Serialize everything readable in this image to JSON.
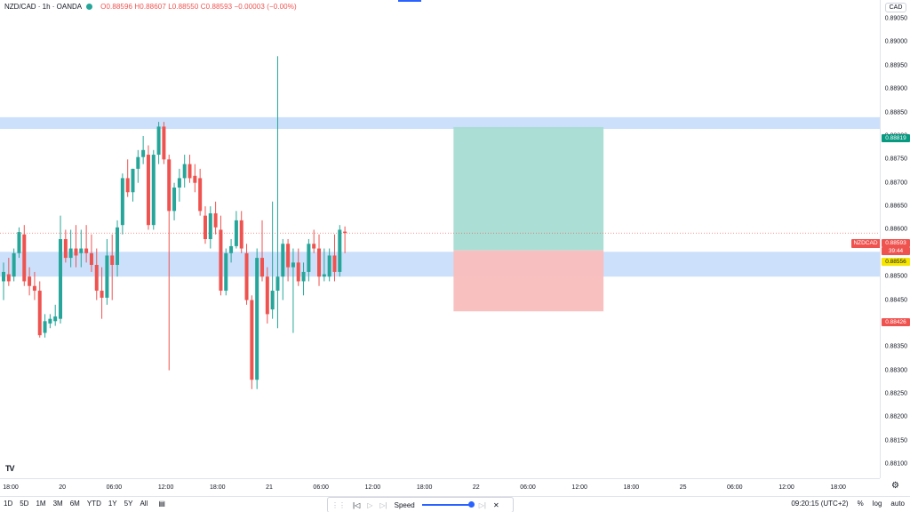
{
  "legend": {
    "symbol": "NZD/CAD · 1h · OANDA",
    "ohlc": "O0.88596 H0.88607 L0.88550 C0.88593 −0.00003 (−0.00%)"
  },
  "currency_button": "CAD",
  "colors": {
    "up": "#26a69a",
    "down": "#ef5350",
    "zone": "#bbd6fb",
    "profit": "#a6dcd2",
    "loss": "#f9bdbd",
    "accent": "#2962ff"
  },
  "chart_data": {
    "type": "candlestick",
    "symbol": "NZD/CAD",
    "interval": "1h",
    "ylim": [
      0.8807,
      0.8909
    ],
    "y_ticks": [
      "0.89050",
      "0.89000",
      "0.88950",
      "0.88900",
      "0.88850",
      "0.88800",
      "0.88750",
      "0.88700",
      "0.88650",
      "0.88600",
      "0.88550",
      "0.88500",
      "0.88450",
      "0.88400",
      "0.88350",
      "0.88300",
      "0.88250",
      "0.88200",
      "0.88150",
      "0.88100"
    ],
    "x_ticks": [
      {
        "label": "18:00",
        "x": 0
      },
      {
        "label": "20",
        "x": 10
      },
      {
        "label": "06:00",
        "x": 20
      },
      {
        "label": "12:00",
        "x": 30
      },
      {
        "label": "18:00",
        "x": 40
      },
      {
        "label": "21",
        "x": 50
      },
      {
        "label": "06:00",
        "x": 60
      },
      {
        "label": "12:00",
        "x": 70
      },
      {
        "label": "18:00",
        "x": 80
      },
      {
        "label": "22",
        "x": 90
      },
      {
        "label": "06:00",
        "x": 100
      },
      {
        "label": "12:00",
        "x": 110
      },
      {
        "label": "18:00",
        "x": 120
      },
      {
        "label": "25",
        "x": 130
      },
      {
        "label": "06:00",
        "x": 140
      },
      {
        "label": "12:00",
        "x": 150
      },
      {
        "label": "18:00",
        "x": 160
      }
    ],
    "candles": [
      {
        "o": 0.8849,
        "h": 0.8853,
        "l": 0.8845,
        "c": 0.8851
      },
      {
        "o": 0.88505,
        "h": 0.8854,
        "l": 0.8848,
        "c": 0.8849
      },
      {
        "o": 0.885,
        "h": 0.8856,
        "l": 0.8849,
        "c": 0.8855
      },
      {
        "o": 0.8855,
        "h": 0.88605,
        "l": 0.8854,
        "c": 0.88595
      },
      {
        "o": 0.8859,
        "h": 0.8861,
        "l": 0.8848,
        "c": 0.8849
      },
      {
        "o": 0.885,
        "h": 0.8852,
        "l": 0.8846,
        "c": 0.8848
      },
      {
        "o": 0.8848,
        "h": 0.8851,
        "l": 0.8845,
        "c": 0.8847
      },
      {
        "o": 0.8847,
        "h": 0.8849,
        "l": 0.8837,
        "c": 0.88375
      },
      {
        "o": 0.8838,
        "h": 0.8842,
        "l": 0.8837,
        "c": 0.88405
      },
      {
        "o": 0.884,
        "h": 0.8842,
        "l": 0.8839,
        "c": 0.8841
      },
      {
        "o": 0.88405,
        "h": 0.8844,
        "l": 0.88395,
        "c": 0.88415
      },
      {
        "o": 0.8841,
        "h": 0.8863,
        "l": 0.884,
        "c": 0.8858
      },
      {
        "o": 0.8858,
        "h": 0.886,
        "l": 0.8853,
        "c": 0.8854
      },
      {
        "o": 0.8854,
        "h": 0.886,
        "l": 0.8852,
        "c": 0.8856
      },
      {
        "o": 0.8856,
        "h": 0.8861,
        "l": 0.8852,
        "c": 0.88545
      },
      {
        "o": 0.8855,
        "h": 0.886,
        "l": 0.8852,
        "c": 0.8856
      },
      {
        "o": 0.8856,
        "h": 0.8861,
        "l": 0.8853,
        "c": 0.8855
      },
      {
        "o": 0.8855,
        "h": 0.8859,
        "l": 0.8851,
        "c": 0.88525
      },
      {
        "o": 0.88525,
        "h": 0.8856,
        "l": 0.8845,
        "c": 0.8847
      },
      {
        "o": 0.8847,
        "h": 0.8852,
        "l": 0.8841,
        "c": 0.88455
      },
      {
        "o": 0.88455,
        "h": 0.8858,
        "l": 0.8844,
        "c": 0.88545
      },
      {
        "o": 0.88545,
        "h": 0.8859,
        "l": 0.8845,
        "c": 0.88525
      },
      {
        "o": 0.88525,
        "h": 0.8862,
        "l": 0.885,
        "c": 0.88605
      },
      {
        "o": 0.8861,
        "h": 0.8872,
        "l": 0.8859,
        "c": 0.8871
      },
      {
        "o": 0.8871,
        "h": 0.8875,
        "l": 0.8867,
        "c": 0.8868
      },
      {
        "o": 0.8868,
        "h": 0.8873,
        "l": 0.8866,
        "c": 0.8873
      },
      {
        "o": 0.8873,
        "h": 0.8877,
        "l": 0.887,
        "c": 0.88755
      },
      {
        "o": 0.88755,
        "h": 0.888,
        "l": 0.8874,
        "c": 0.8877
      },
      {
        "o": 0.8876,
        "h": 0.8878,
        "l": 0.886,
        "c": 0.8861
      },
      {
        "o": 0.8861,
        "h": 0.8877,
        "l": 0.886,
        "c": 0.8876
      },
      {
        "o": 0.8876,
        "h": 0.8883,
        "l": 0.8874,
        "c": 0.8882
      },
      {
        "o": 0.8882,
        "h": 0.8883,
        "l": 0.8874,
        "c": 0.8875
      },
      {
        "o": 0.8875,
        "h": 0.8876,
        "l": 0.883,
        "c": 0.8864
      },
      {
        "o": 0.8864,
        "h": 0.887,
        "l": 0.8862,
        "c": 0.8869
      },
      {
        "o": 0.8869,
        "h": 0.8873,
        "l": 0.8866,
        "c": 0.8871
      },
      {
        "o": 0.8871,
        "h": 0.8876,
        "l": 0.8869,
        "c": 0.8874
      },
      {
        "o": 0.8874,
        "h": 0.8876,
        "l": 0.887,
        "c": 0.8871
      },
      {
        "o": 0.88715,
        "h": 0.8874,
        "l": 0.8868,
        "c": 0.887
      },
      {
        "o": 0.8871,
        "h": 0.8873,
        "l": 0.8863,
        "c": 0.8864
      },
      {
        "o": 0.8863,
        "h": 0.8865,
        "l": 0.8857,
        "c": 0.8858
      },
      {
        "o": 0.8858,
        "h": 0.8865,
        "l": 0.8856,
        "c": 0.88635
      },
      {
        "o": 0.88635,
        "h": 0.8866,
        "l": 0.8859,
        "c": 0.88605
      },
      {
        "o": 0.886,
        "h": 0.8863,
        "l": 0.8846,
        "c": 0.8847
      },
      {
        "o": 0.8847,
        "h": 0.8856,
        "l": 0.8846,
        "c": 0.8855
      },
      {
        "o": 0.8855,
        "h": 0.8858,
        "l": 0.8853,
        "c": 0.88565
      },
      {
        "o": 0.88565,
        "h": 0.8864,
        "l": 0.8856,
        "c": 0.8862
      },
      {
        "o": 0.8862,
        "h": 0.8864,
        "l": 0.8855,
        "c": 0.8856
      },
      {
        "o": 0.8855,
        "h": 0.8857,
        "l": 0.8844,
        "c": 0.8845
      },
      {
        "o": 0.8845,
        "h": 0.8846,
        "l": 0.8826,
        "c": 0.8828
      },
      {
        "o": 0.8828,
        "h": 0.8856,
        "l": 0.8826,
        "c": 0.8854
      },
      {
        "o": 0.8854,
        "h": 0.8862,
        "l": 0.8849,
        "c": 0.885
      },
      {
        "o": 0.885,
        "h": 0.8852,
        "l": 0.884,
        "c": 0.8842
      },
      {
        "o": 0.8843,
        "h": 0.8866,
        "l": 0.8841,
        "c": 0.8847
      },
      {
        "o": 0.8847,
        "h": 0.8897,
        "l": 0.8839,
        "c": 0.885
      },
      {
        "o": 0.885,
        "h": 0.8858,
        "l": 0.8845,
        "c": 0.8857
      },
      {
        "o": 0.8857,
        "h": 0.8858,
        "l": 0.8849,
        "c": 0.8852
      },
      {
        "o": 0.8852,
        "h": 0.8856,
        "l": 0.8838,
        "c": 0.8853
      },
      {
        "o": 0.8853,
        "h": 0.8856,
        "l": 0.8848,
        "c": 0.8849
      },
      {
        "o": 0.8849,
        "h": 0.8853,
        "l": 0.8846,
        "c": 0.8851
      },
      {
        "o": 0.8851,
        "h": 0.8858,
        "l": 0.8849,
        "c": 0.8857
      },
      {
        "o": 0.8857,
        "h": 0.886,
        "l": 0.8855,
        "c": 0.8856
      },
      {
        "o": 0.8856,
        "h": 0.8859,
        "l": 0.8848,
        "c": 0.885
      },
      {
        "o": 0.885,
        "h": 0.8856,
        "l": 0.8849,
        "c": 0.88505
      },
      {
        "o": 0.885,
        "h": 0.8856,
        "l": 0.8849,
        "c": 0.88545
      },
      {
        "o": 0.88545,
        "h": 0.8859,
        "l": 0.8849,
        "c": 0.8851
      },
      {
        "o": 0.8851,
        "h": 0.8861,
        "l": 0.885,
        "c": 0.886
      },
      {
        "o": 0.88596,
        "h": 0.88607,
        "l": 0.8855,
        "c": 0.88593
      }
    ],
    "zones": [
      {
        "from": 0.88815,
        "to": 0.8884
      },
      {
        "from": 0.885,
        "to": 0.88553
      }
    ],
    "position": {
      "entry": 0.88556,
      "target": 0.88819,
      "stop": 0.88426,
      "x_start": 87,
      "x_end": 116
    },
    "last_price": 0.88593
  },
  "price_labels": {
    "target": "0.88819",
    "last": "0.88593",
    "countdown": "39:44",
    "entry": "0.88556",
    "stop": "0.88426",
    "symbol_tag": "NZDCAD"
  },
  "toolbar": {
    "ranges": [
      "1D",
      "5D",
      "1M",
      "3M",
      "6M",
      "YTD",
      "1Y",
      "5Y",
      "All"
    ],
    "speed_label": "Speed",
    "time": "09:20:15 (UTC+2)",
    "percent": "%",
    "log": "log",
    "auto": "auto"
  },
  "logo": "TV"
}
